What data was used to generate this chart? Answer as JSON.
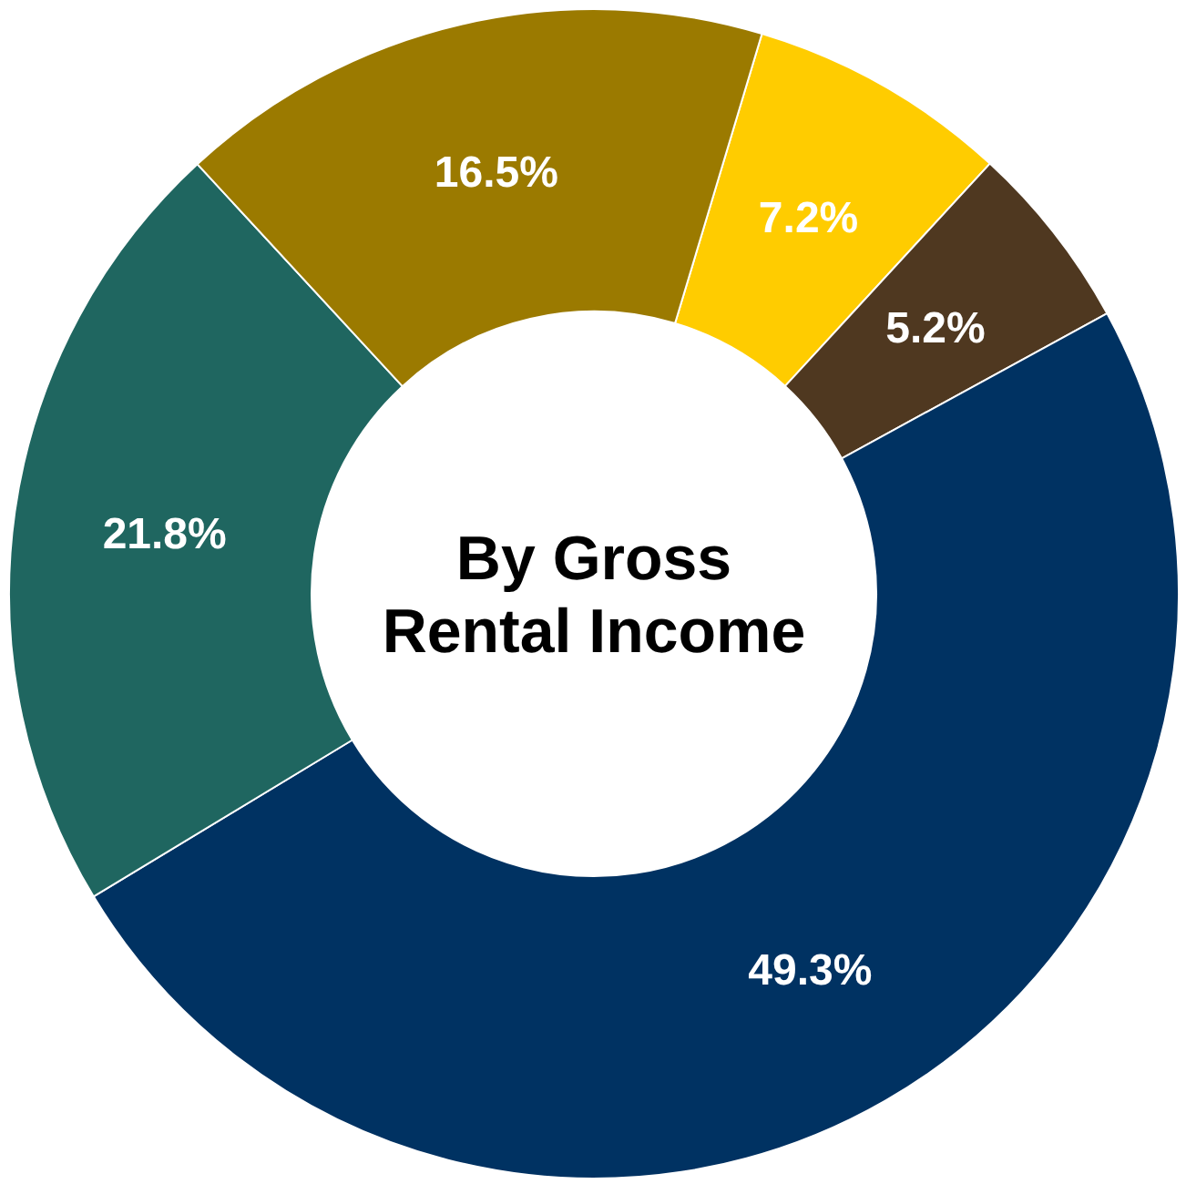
{
  "chart_data": {
    "type": "donut",
    "title": "By Gross Rental Income",
    "categories": [
      null,
      null,
      null,
      null,
      null
    ],
    "values": [
      7.2,
      5.2,
      49.3,
      21.8,
      16.5
    ],
    "colors": [
      "#ffcc00",
      "#4f3820",
      "#003262",
      "#1f6660",
      "#9b7a00"
    ],
    "value_labels": [
      "7.2%",
      "5.2%",
      "49.3%",
      "21.8%",
      "16.5%"
    ],
    "legend": false
  }
}
